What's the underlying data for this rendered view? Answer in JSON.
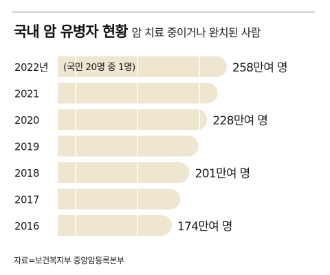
{
  "header": {
    "title": "국내 암 유병자 현황",
    "subtitle": "암 치료 중이거나 완치된 사람"
  },
  "footer": {
    "source": "자료=보건복지부 중앙암등록본부"
  },
  "colors": {
    "bar": "#efe6d0",
    "gridline": "#ffffff",
    "text": "#1a1a1a"
  },
  "chart_data": {
    "type": "bar",
    "orientation": "horizontal",
    "categories": [
      "2022년",
      "2021",
      "2020",
      "2019",
      "2018",
      "2017",
      "2016"
    ],
    "values": [
      258,
      244,
      228,
      215,
      201,
      187,
      174
    ],
    "unit": "만여 명",
    "data_labels": [
      "258만여 명",
      "",
      "228만여 명",
      "",
      "201만여 명",
      "",
      "174만여 명"
    ],
    "annotations": [
      {
        "category": "2022년",
        "text": "(국민 20명 중 1명)"
      }
    ],
    "title": "국내 암 유병자 현황",
    "subtitle": "암 치료 중이거나 완치된 사람",
    "xlim": [
      0,
      300
    ],
    "grid": true
  }
}
